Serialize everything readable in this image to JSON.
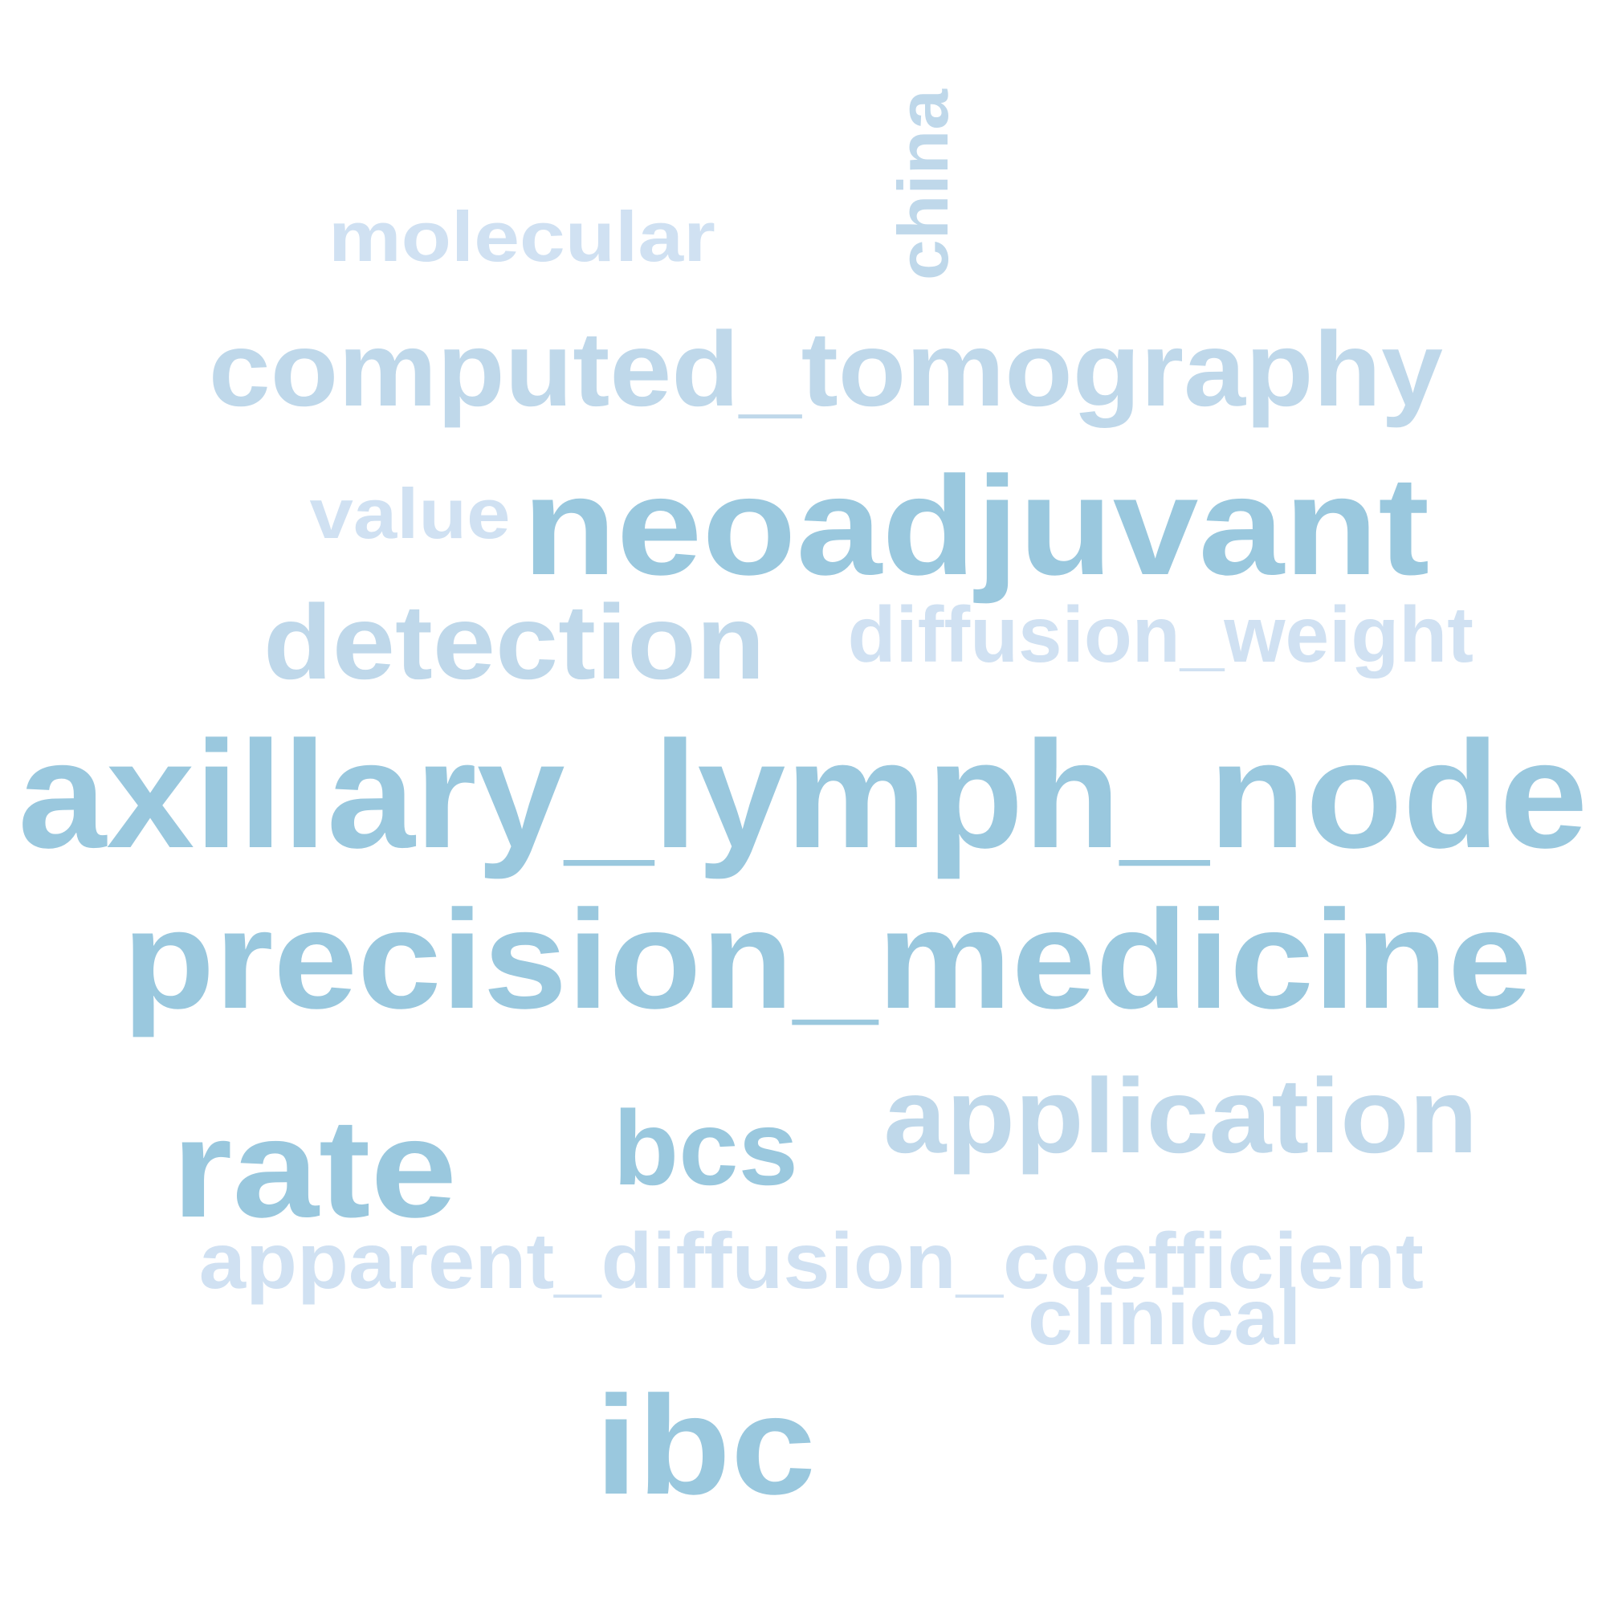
{
  "palette": {
    "strong": "#9ac8de",
    "medium": "#bfd8ea",
    "light": "#d0e1f2"
  },
  "words": [
    {
      "id": "china",
      "text": "china",
      "tone": "medium"
    },
    {
      "id": "molecular",
      "text": "molecular",
      "tone": "light"
    },
    {
      "id": "computed-tomography",
      "text": "computed_tomography",
      "tone": "medium"
    },
    {
      "id": "value",
      "text": "value",
      "tone": "light"
    },
    {
      "id": "neoadjuvant",
      "text": "neoadjuvant",
      "tone": "strong"
    },
    {
      "id": "detection",
      "text": "detection",
      "tone": "medium"
    },
    {
      "id": "diffusion-weight",
      "text": "diffusion_weight",
      "tone": "light"
    },
    {
      "id": "axillary-lymph-node",
      "text": "axillary_lymph_node",
      "tone": "strong"
    },
    {
      "id": "precision-medicine",
      "text": "precision_medicine",
      "tone": "strong"
    },
    {
      "id": "rate",
      "text": "rate",
      "tone": "strong"
    },
    {
      "id": "bcs",
      "text": "bcs",
      "tone": "strong"
    },
    {
      "id": "application",
      "text": "application",
      "tone": "medium"
    },
    {
      "id": "apparent-diffusion-coefficient",
      "text": "apparent_diffusion_coefficient",
      "tone": "light"
    },
    {
      "id": "clinical",
      "text": "clinical",
      "tone": "light"
    },
    {
      "id": "ibc",
      "text": "ibc",
      "tone": "strong"
    }
  ]
}
